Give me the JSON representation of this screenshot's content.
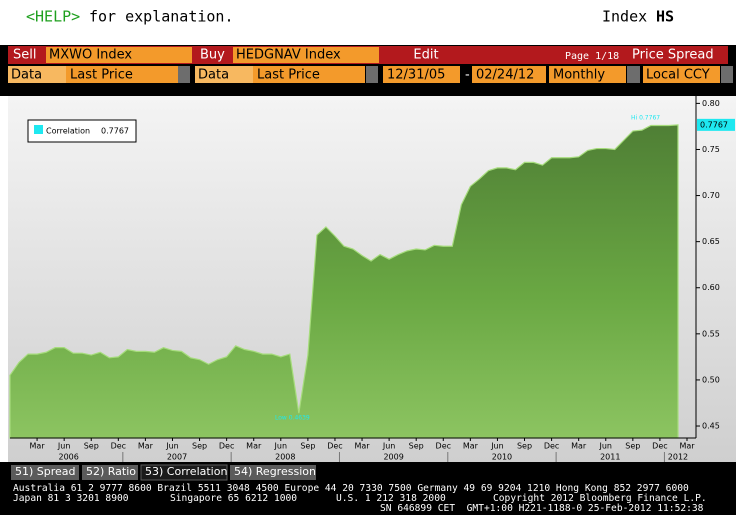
{
  "header": {
    "help_key": "<HELP>",
    "help_text": "for explanation.",
    "index_label": "Index",
    "index_code": "HS"
  },
  "toolbar": {
    "sell": "Sell",
    "sell_security": "MXWO Index",
    "buy": "Buy",
    "buy_security": "HEDGNAV Index",
    "edit": "Edit",
    "page": "Page 1/18",
    "view": "Price Spread",
    "data_1": "Data",
    "field_1": "Last Price",
    "data_2": "Data",
    "field_2": "Last Price",
    "start_date": "12/31/05",
    "date_separator": "-",
    "end_date": "02/24/12",
    "period": "Monthly",
    "currency": "Local CCY"
  },
  "chart_data": {
    "type": "area",
    "categories": [
      null,
      null,
      null,
      "Mar",
      null,
      null,
      "Jun",
      null,
      null,
      "Sep",
      null,
      null,
      "Dec",
      null,
      null,
      "Mar",
      null,
      null,
      "Jun",
      null,
      null,
      "Sep",
      null,
      null,
      "Dec",
      null,
      null,
      "Mar",
      null,
      null,
      "Jun",
      null,
      null,
      "Sep",
      null,
      null,
      "Dec",
      null,
      null,
      "Mar",
      null,
      null,
      "Jun",
      null,
      null,
      "Sep",
      null,
      null,
      "Dec",
      null,
      null,
      "Mar",
      null,
      null,
      "Jun",
      null,
      null,
      "Sep",
      null,
      null,
      "Dec",
      null,
      null,
      "Mar",
      null,
      null,
      "Jun",
      null,
      null,
      "Sep",
      null,
      null,
      "Dec",
      null,
      null,
      "Mar"
    ],
    "years": [
      "2006",
      "2007",
      "2008",
      "2009",
      "2010",
      "2011",
      "2012"
    ],
    "series": [
      {
        "name": "Correlation",
        "color": "#6aa843",
        "values": [
          0.505,
          0.519,
          0.528,
          0.528,
          0.53,
          0.535,
          0.535,
          0.529,
          0.529,
          0.527,
          0.53,
          0.524,
          0.525,
          0.533,
          0.531,
          0.531,
          0.53,
          0.535,
          0.532,
          0.531,
          0.524,
          0.522,
          0.517,
          0.522,
          0.525,
          0.537,
          0.533,
          0.531,
          0.528,
          0.528,
          0.525,
          0.528,
          0.4639,
          0.527,
          0.657,
          0.666,
          0.656,
          0.645,
          0.642,
          0.635,
          0.629,
          0.636,
          0.631,
          0.636,
          0.64,
          0.642,
          0.641,
          0.646,
          0.645,
          0.645,
          0.69,
          0.71,
          0.718,
          0.727,
          0.73,
          0.73,
          0.728,
          0.736,
          0.736,
          0.733,
          0.741,
          0.741,
          0.741,
          0.742,
          0.749,
          0.751,
          0.751,
          0.75,
          0.76,
          0.77,
          0.771,
          0.776,
          0.776,
          0.776,
          0.7767,
          null
        ]
      }
    ],
    "legend_value": "0.7767",
    "last_value_label": "0.7767",
    "high_label": "Hi 0.7767",
    "low_label": "Low 0.4639",
    "ylim": [
      0.437,
      0.808
    ],
    "yticks": [
      {
        "value": 0.45,
        "label": "0.45"
      },
      {
        "value": 0.5,
        "label": "0.50"
      },
      {
        "value": 0.55,
        "label": "0.55"
      },
      {
        "value": 0.6,
        "label": "0.60"
      },
      {
        "value": 0.65,
        "label": "0.65"
      },
      {
        "value": 0.7,
        "label": "0.70"
      },
      {
        "value": 0.75,
        "label": "0.75"
      },
      {
        "value": 0.8,
        "label": "0.80"
      }
    ],
    "legend_position": "upper left"
  },
  "tabs": [
    "51) Spread",
    "52) Ratio",
    "53) Correlation",
    "54) Regression"
  ],
  "footer": [
    "Australia 61 2 9777 8600 Brazil 5511 3048 4500 Europe 44 20 7330 7500 Germany 49 69 9204 1210 Hong Kong 852 2977 6000",
    "Japan 81 3 3201 8900",
    "Singapore 65 6212 1000",
    "U.S. 1 212 318 2000",
    "Copyright 2012 Bloomberg Finance L.P.",
    "SN 646899 CET  GMT+1:00 H221-1188-0 25-Feb-2012 11:52:38"
  ]
}
